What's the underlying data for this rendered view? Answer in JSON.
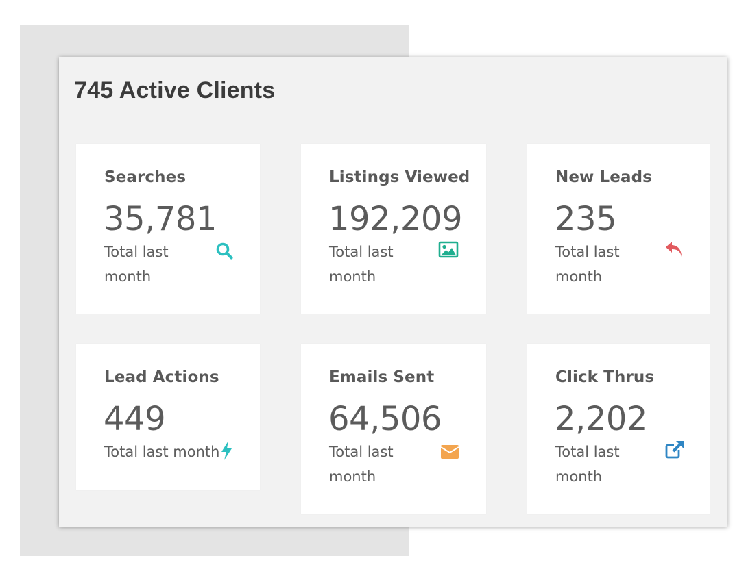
{
  "title": "745 Active Clients",
  "colors": {
    "teal": "#2cc0c0",
    "green": "#1fae8f",
    "red": "#e25a5f",
    "orange": "#f3a54f",
    "blue": "#2f86c4"
  },
  "cards": [
    {
      "label": "Searches",
      "value": "35,781",
      "sub": "Total last month",
      "icon": "search-icon"
    },
    {
      "label": "Listings Viewed",
      "value": "192,209",
      "sub": "Total last month",
      "icon": "image-icon"
    },
    {
      "label": "New Leads",
      "value": "235",
      "sub": "Total last month",
      "icon": "reply-icon"
    },
    {
      "label": "Lead Actions",
      "value": "449",
      "sub": "Total last month",
      "icon": "bolt-icon"
    },
    {
      "label": "Emails Sent",
      "value": "64,506",
      "sub": "Total last month",
      "icon": "envelope-icon"
    },
    {
      "label": "Click Thrus",
      "value": "2,202",
      "sub": "Total last month",
      "icon": "external-link-icon"
    }
  ]
}
